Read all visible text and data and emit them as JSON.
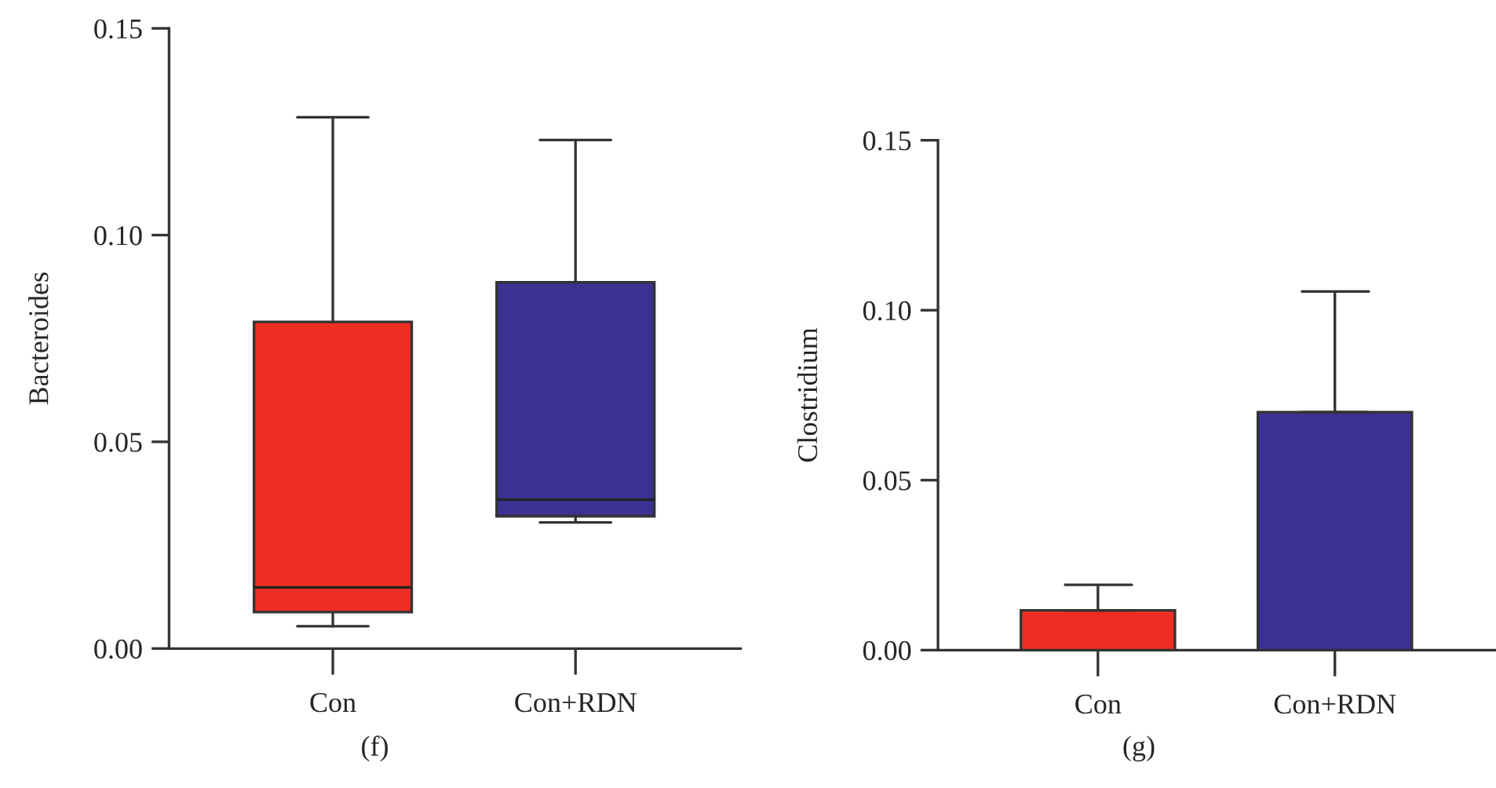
{
  "chart_data": [
    {
      "type": "box",
      "title": "(f)",
      "ylabel": "Bacteroides",
      "categories": [
        "Con",
        "Con+RDN"
      ],
      "colors": [
        "#ee2e24",
        "#3a3190"
      ],
      "boxes": [
        {
          "low": 0.0054,
          "q1": 0.0088,
          "median": 0.0148,
          "q3": 0.079,
          "high": 0.1285
        },
        {
          "low": 0.0305,
          "q1": 0.032,
          "median": 0.036,
          "q3": 0.0886,
          "high": 0.123
        }
      ],
      "ylim": [
        0,
        0.15
      ],
      "yticks": [
        {
          "value": 0,
          "label": "0.00"
        },
        {
          "value": 0.05,
          "label": "0.05"
        },
        {
          "value": 0.1,
          "label": "0.10"
        },
        {
          "value": 0.15,
          "label": "0.15"
        }
      ],
      "grid": false,
      "legend": false
    },
    {
      "type": "bar",
      "title": "(g)",
      "ylabel": "Clostridium",
      "categories": [
        "Con",
        "Con+RDN"
      ],
      "colors": [
        "#ee2e24",
        "#3a3190"
      ],
      "values": [
        0.0117,
        0.07
      ],
      "errors": [
        [
          0.0117,
          0.0192
        ],
        [
          0.07,
          0.1055
        ]
      ],
      "ylim": [
        0,
        0.15
      ],
      "yticks": [
        {
          "value": 0,
          "label": "0.00"
        },
        {
          "value": 0.05,
          "label": "0.05"
        },
        {
          "value": 0.1,
          "label": "0.10"
        },
        {
          "value": 0.15,
          "label": "0.15"
        }
      ],
      "grid": false,
      "legend": false
    }
  ]
}
